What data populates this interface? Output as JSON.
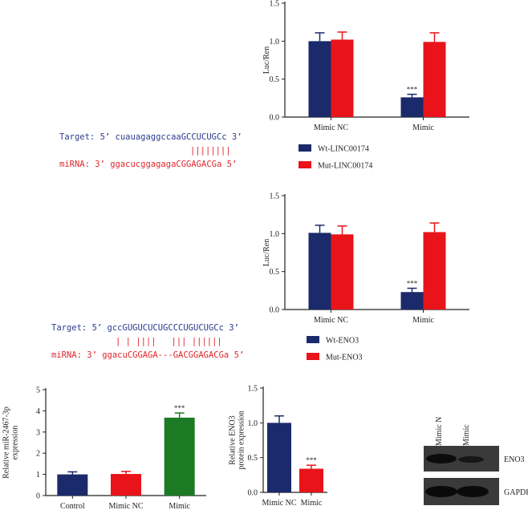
{
  "colors": {
    "navy": "#1b2a6b",
    "red": "#e8141a",
    "green": "#1d7a24",
    "blue_text": "#2a3b8f",
    "red_text": "#e0262b",
    "axis": "#222222"
  },
  "sequences": {
    "a": {
      "target": "Target: 5’ cuauagaggccaaGCCUCUGCc 3’",
      "bars": "||||||||",
      "mirna": "miRNA: 3’ ggacucggagagaCGGAGACGa 5’"
    },
    "b": {
      "target": "Target: 5’ gccGUGUCUCUGCCCUGUCUGCc 3’",
      "bars": "| | ||||   ||| ||||||",
      "mirna": "miRNA: 3’ ggacuCGGAGA---GACGGAGACGa 5’"
    }
  },
  "chart_data": [
    {
      "id": "luc_linc",
      "type": "bar",
      "ylabel": "Luc/Ren",
      "ylim": [
        0,
        1.5
      ],
      "yticks": [
        "0.0",
        "0.5",
        "1.0",
        "1.5"
      ],
      "categories": [
        "Mimic NC",
        "Mimic"
      ],
      "series": [
        {
          "name": "Wt-LINC00174",
          "color": "#1b2a6b",
          "values": [
            1.0,
            0.26
          ],
          "errors": [
            0.11,
            0.04
          ]
        },
        {
          "name": "Mut-LINC00174",
          "color": "#e8141a",
          "values": [
            1.02,
            0.99
          ],
          "errors": [
            0.1,
            0.12
          ]
        }
      ],
      "annotations": [
        {
          "category": 1,
          "series": 0,
          "text": "***"
        }
      ],
      "legend": [
        "Wt-LINC00174",
        "Mut-LINC00174"
      ]
    },
    {
      "id": "luc_eno3",
      "type": "bar",
      "ylabel": "Luc/Ren",
      "ylim": [
        0,
        1.5
      ],
      "yticks": [
        "0.0",
        "0.5",
        "1.0",
        "1.5"
      ],
      "categories": [
        "Mimic NC",
        "Mimic"
      ],
      "series": [
        {
          "name": "Wt-ENO3",
          "color": "#1b2a6b",
          "values": [
            1.01,
            0.23
          ],
          "errors": [
            0.1,
            0.05
          ]
        },
        {
          "name": "Mut-ENO3",
          "color": "#e8141a",
          "values": [
            0.99,
            1.02
          ],
          "errors": [
            0.11,
            0.12
          ]
        }
      ],
      "annotations": [
        {
          "category": 1,
          "series": 0,
          "text": "***"
        }
      ],
      "legend": [
        "Wt-ENO3",
        "Mut-ENO3"
      ]
    },
    {
      "id": "mir_expr",
      "type": "bar",
      "ylabel": [
        "Relative miR-2467-3p",
        "expression"
      ],
      "ylim": [
        0,
        5
      ],
      "yticks": [
        "0",
        "1",
        "2",
        "3",
        "4",
        "5"
      ],
      "categories": [
        "Control",
        "Mimic NC",
        "Mimic"
      ],
      "values": [
        1.0,
        1.02,
        3.68
      ],
      "errors": [
        0.12,
        0.12,
        0.22
      ],
      "colors": [
        "#1b2a6b",
        "#e8141a",
        "#1d7a24"
      ],
      "annotations": [
        {
          "category": 2,
          "text": "***"
        }
      ]
    },
    {
      "id": "eno3_protein",
      "type": "bar",
      "ylabel": [
        "Relative ENO3",
        "protein expression"
      ],
      "ylim": [
        0,
        1.5
      ],
      "yticks": [
        "0.0",
        "0.5",
        "1.0",
        "1.5"
      ],
      "categories": [
        "Mimic NC",
        "Mimic"
      ],
      "values": [
        1.0,
        0.34
      ],
      "errors": [
        0.1,
        0.05
      ],
      "colors": [
        "#1b2a6b",
        "#e8141a"
      ],
      "annotations": [
        {
          "category": 1,
          "text": "***"
        }
      ]
    }
  ],
  "western_blot": {
    "lanes": [
      "Mimic NC",
      "Mimic"
    ],
    "bands": [
      "ENO3",
      "GAPDH"
    ]
  }
}
